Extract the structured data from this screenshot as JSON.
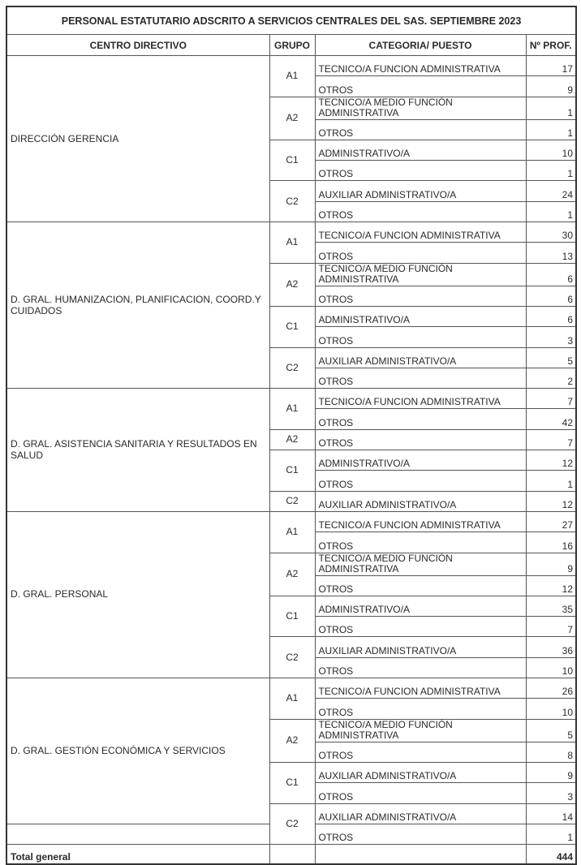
{
  "title": "PERSONAL ESTATUTARIO ADSCRITO A SERVICIOS CENTRALES DEL SAS. SEPTIEMBRE 2023",
  "headers": {
    "centro": "CENTRO DIRECTIVO",
    "grupo": "GRUPO",
    "categoria": "CATEGORIA/ PUESTO",
    "nprof": "Nº PROF."
  },
  "sections": [
    {
      "name": "DIRECCIÓN GERENCIA",
      "groups": [
        {
          "grupo": "A1",
          "rows": [
            {
              "cat": "TECNICO/A FUNCION ADMINISTRATIVA",
              "n": "17"
            },
            {
              "cat": "OTROS",
              "n": "9"
            }
          ]
        },
        {
          "grupo": "A2",
          "rows": [
            {
              "cat": "TECNICO/A MEDIO FUNCIÓN ADMINISTRATIVA",
              "n": "1"
            },
            {
              "cat": "OTROS",
              "n": "1"
            }
          ]
        },
        {
          "grupo": "C1",
          "rows": [
            {
              "cat": "ADMINISTRATIVO/A",
              "n": "10"
            },
            {
              "cat": "OTROS",
              "n": "1"
            }
          ]
        },
        {
          "grupo": "C2",
          "rows": [
            {
              "cat": "AUXILIAR ADMINISTRATIVO/A",
              "n": "24"
            },
            {
              "cat": "OTROS",
              "n": "1"
            }
          ]
        }
      ]
    },
    {
      "name": "D. GRAL. HUMANIZACION, PLANIFICACION, COORD.Y CUIDADOS",
      "groups": [
        {
          "grupo": "A1",
          "rows": [
            {
              "cat": "TECNICO/A FUNCION ADMINISTRATIVA",
              "n": "30"
            },
            {
              "cat": "OTROS",
              "n": "13"
            }
          ]
        },
        {
          "grupo": "A2",
          "rows": [
            {
              "cat": "TECNICO/A MEDIO FUNCIÓN ADMINISTRATIVA",
              "n": "6"
            },
            {
              "cat": "OTROS",
              "n": "6"
            }
          ]
        },
        {
          "grupo": "C1",
          "rows": [
            {
              "cat": "ADMINISTRATIVO/A",
              "n": "6"
            },
            {
              "cat": "OTROS",
              "n": "3"
            }
          ]
        },
        {
          "grupo": "C2",
          "rows": [
            {
              "cat": "AUXILIAR ADMINISTRATIVO/A",
              "n": "5"
            },
            {
              "cat": "OTROS",
              "n": "2"
            }
          ]
        }
      ]
    },
    {
      "name": "D. GRAL. ASISTENCIA SANITARIA Y RESULTADOS EN SALUD",
      "groups": [
        {
          "grupo": "A1",
          "rows": [
            {
              "cat": "TECNICO/A FUNCION ADMINISTRATIVA",
              "n": "7"
            },
            {
              "cat": "OTROS",
              "n": "42"
            }
          ]
        },
        {
          "grupo": "A2",
          "rows": [
            {
              "cat": "OTROS",
              "n": "7"
            }
          ]
        },
        {
          "grupo": "C1",
          "rows": [
            {
              "cat": "ADMINISTRATIVO/A",
              "n": "12"
            },
            {
              "cat": "OTROS",
              "n": "1"
            }
          ]
        },
        {
          "grupo": "C2",
          "rows": [
            {
              "cat": "AUXILIAR ADMINISTRATIVO/A",
              "n": "12"
            }
          ]
        }
      ]
    },
    {
      "name": "D. GRAL. PERSONAL",
      "groups": [
        {
          "grupo": "A1",
          "rows": [
            {
              "cat": "TECNICO/A FUNCION ADMINISTRATIVA",
              "n": "27"
            },
            {
              "cat": "OTROS",
              "n": "16"
            }
          ]
        },
        {
          "grupo": "A2",
          "rows": [
            {
              "cat": "TECNICO/A MEDIO FUNCIÓN ADMINISTRATIVA",
              "n": "9"
            },
            {
              "cat": "OTROS",
              "n": "12"
            }
          ]
        },
        {
          "grupo": "C1",
          "rows": [
            {
              "cat": "ADMINISTRATIVO/A",
              "n": "35"
            },
            {
              "cat": "OTROS",
              "n": "7"
            }
          ]
        },
        {
          "grupo": "C2",
          "rows": [
            {
              "cat": "AUXILIAR ADMINISTRATIVO/A",
              "n": "36"
            },
            {
              "cat": "OTROS",
              "n": "10"
            }
          ]
        }
      ]
    },
    {
      "name": "D. GRAL. GESTIÓN ECONÓMICA Y SERVICIOS",
      "lastRowSplit": true,
      "groups": [
        {
          "grupo": "A1",
          "rows": [
            {
              "cat": "TECNICO/A FUNCION ADMINISTRATIVA",
              "n": "26"
            },
            {
              "cat": "OTROS",
              "n": "10"
            }
          ]
        },
        {
          "grupo": "A2",
          "rows": [
            {
              "cat": "TECNICO/A MEDIO FUNCIÓN ADMINISTRATIVA",
              "n": "5"
            },
            {
              "cat": "OTROS",
              "n": "8"
            }
          ]
        },
        {
          "grupo": "C1",
          "rows": [
            {
              "cat": "AUXILIAR ADMINISTRATIVO/A",
              "n": "9"
            },
            {
              "cat": "OTROS",
              "n": "3"
            }
          ]
        },
        {
          "grupo": "C2",
          "rows": [
            {
              "cat": "AUXILIAR ADMINISTRATIVO/A",
              "n": "14"
            },
            {
              "cat": "OTROS",
              "n": "1"
            }
          ]
        }
      ]
    }
  ],
  "total": {
    "label": "Total general",
    "value": "444"
  }
}
